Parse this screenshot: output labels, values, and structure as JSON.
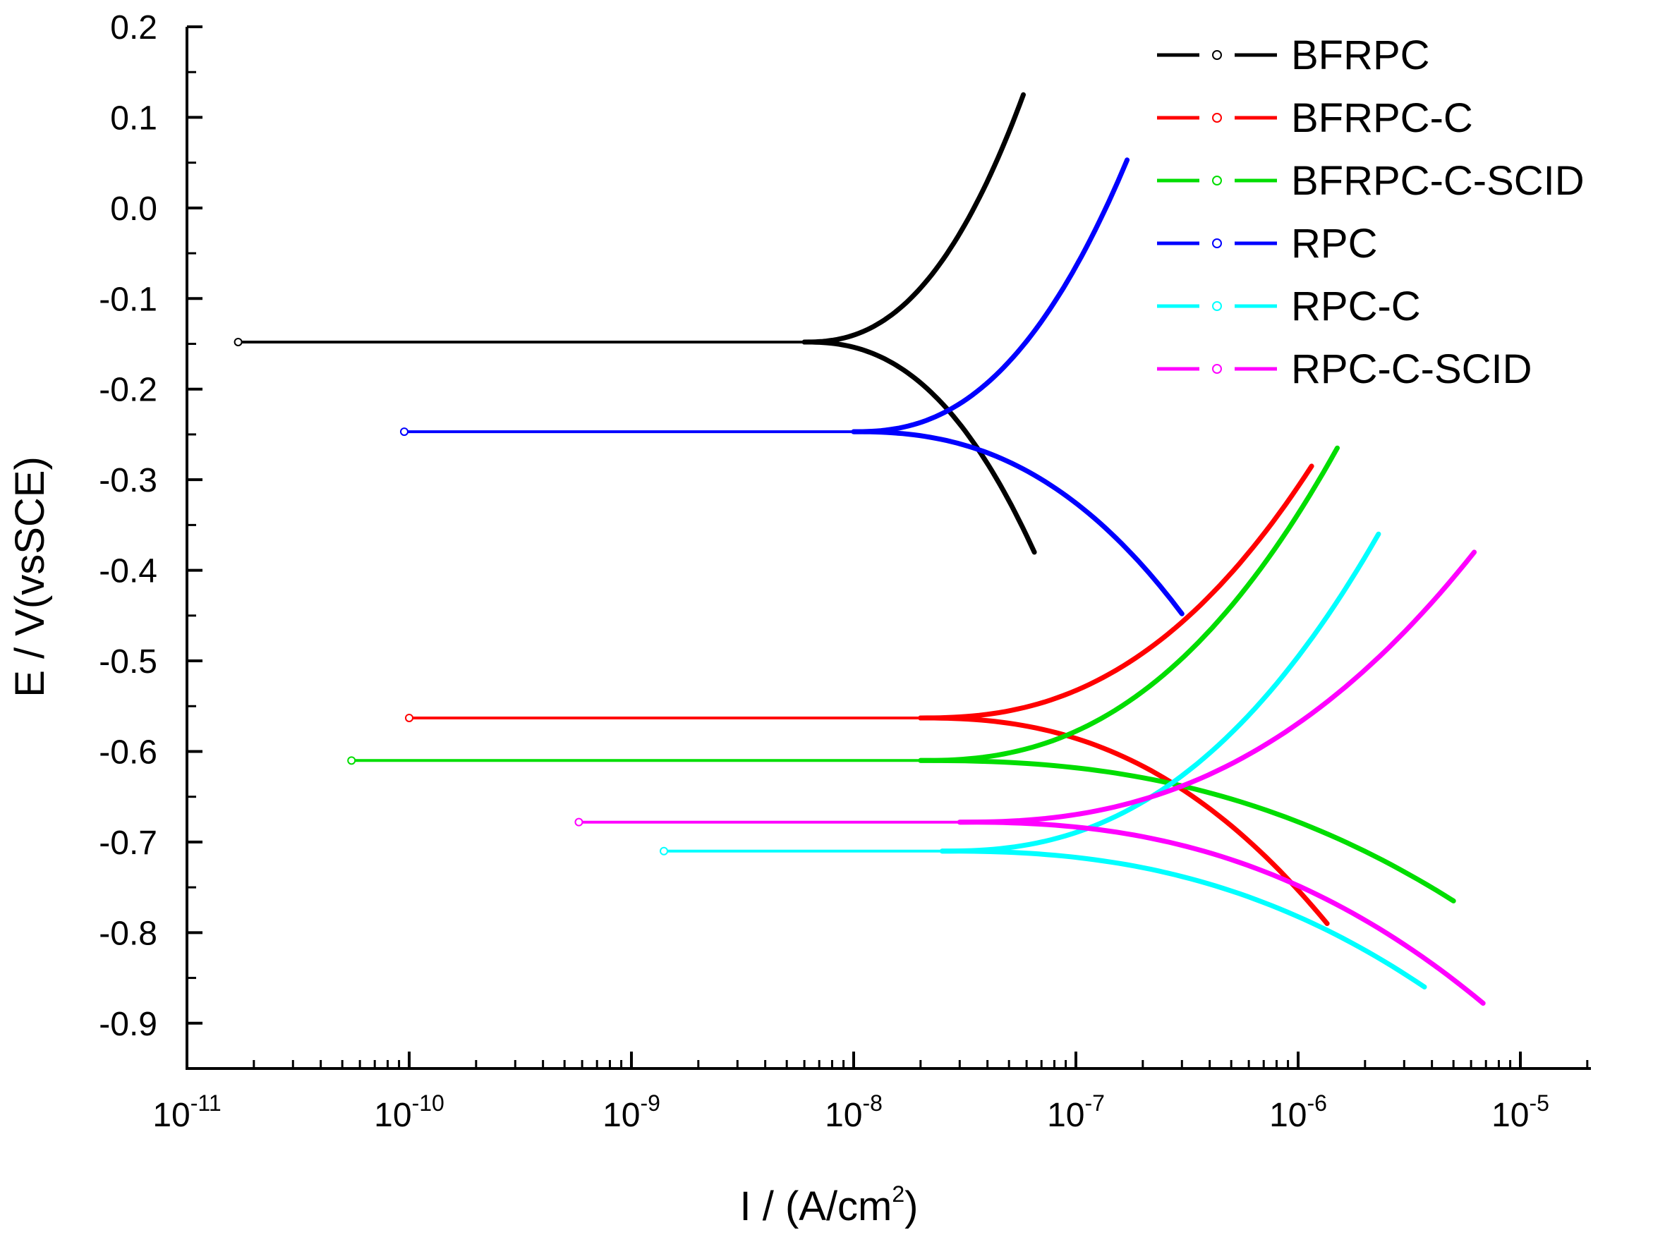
{
  "chart_data": {
    "type": "line",
    "title": "",
    "xlabel": "I / (A/cm",
    "xlabel_sup": "2",
    "xlabel_tail": ")",
    "ylabel": "E / V(vsSCE)",
    "xscale": "log",
    "xlim": [
      1e-11,
      1.778e-05
    ],
    "ylim": [
      -0.95,
      0.2
    ],
    "x_major_ticks": [
      {
        "exp": -11,
        "base": "10",
        "sup": "-11"
      },
      {
        "exp": -10,
        "base": "10",
        "sup": "-10"
      },
      {
        "exp": -9,
        "base": "10",
        "sup": "-9"
      },
      {
        "exp": -8,
        "base": "10",
        "sup": "-8"
      },
      {
        "exp": -7,
        "base": "10",
        "sup": "-7"
      },
      {
        "exp": -6,
        "base": "10",
        "sup": "-6"
      },
      {
        "exp": -5,
        "base": "10",
        "sup": "-5"
      }
    ],
    "y_ticks": [
      {
        "value": 0.2,
        "label": "0.2"
      },
      {
        "value": 0.1,
        "label": "0.1"
      },
      {
        "value": 0.0,
        "label": "0.0"
      },
      {
        "value": -0.1,
        "label": "-0.1"
      },
      {
        "value": -0.2,
        "label": "-0.2"
      },
      {
        "value": -0.3,
        "label": "-0.3"
      },
      {
        "value": -0.4,
        "label": "-0.4"
      },
      {
        "value": -0.5,
        "label": "-0.5"
      },
      {
        "value": -0.6,
        "label": "-0.6"
      },
      {
        "value": -0.7,
        "label": "-0.7"
      },
      {
        "value": -0.8,
        "label": "-0.8"
      },
      {
        "value": -0.9,
        "label": "-0.9"
      }
    ],
    "legend_position": "top-right",
    "series": [
      {
        "name": "BFRPC",
        "color": "#000000",
        "marker": "triangle-down",
        "ecorr": -0.148,
        "i_start": 1.7e-11,
        "icorr": 6e-09,
        "anodic_end": [
          5.8e-08,
          0.125
        ],
        "cathodic_end": [
          6.5e-08,
          -0.38
        ]
      },
      {
        "name": "BFRPC-C",
        "color": "#ff0000",
        "marker": "diamond",
        "ecorr": -0.563,
        "i_start": 1e-10,
        "icorr": 2e-08,
        "anodic_end": [
          1.15e-06,
          -0.285
        ],
        "cathodic_end": [
          1.35e-06,
          -0.79
        ]
      },
      {
        "name": "BFRPC-C-SCID",
        "color": "#00dd00",
        "marker": "triangle-left",
        "ecorr": -0.61,
        "i_start": 5.5e-11,
        "icorr": 2e-08,
        "anodic_end": [
          1.5e-06,
          -0.265
        ],
        "cathodic_end": [
          5e-06,
          -0.765
        ]
      },
      {
        "name": "RPC",
        "color": "#0000ff",
        "marker": "triangle-up",
        "ecorr": -0.247,
        "i_start": 9.5e-11,
        "icorr": 1e-08,
        "anodic_end": [
          1.7e-07,
          0.053
        ],
        "cathodic_end": [
          3e-07,
          -0.448
        ]
      },
      {
        "name": "RPC-C",
        "color": "#00ffff",
        "marker": "square",
        "ecorr": -0.71,
        "i_start": 1.4e-09,
        "icorr": 2.5e-08,
        "anodic_end": [
          2.3e-06,
          -0.36
        ],
        "cathodic_end": [
          3.7e-06,
          -0.86
        ]
      },
      {
        "name": "RPC-C-SCID",
        "color": "#ff00ff",
        "marker": "circle",
        "ecorr": -0.678,
        "i_start": 5.8e-10,
        "icorr": 3e-08,
        "anodic_end": [
          6.2e-06,
          -0.38
        ],
        "cathodic_end": [
          6.8e-06,
          -0.878
        ]
      }
    ]
  }
}
